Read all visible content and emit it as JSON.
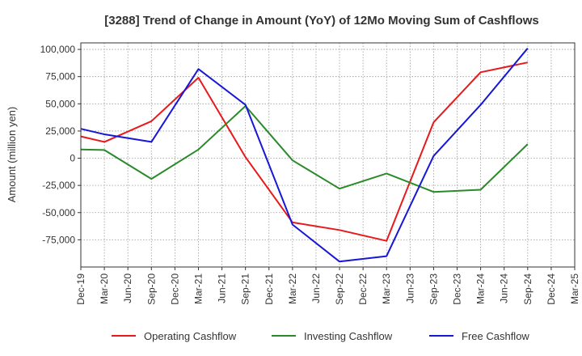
{
  "chart_data": {
    "type": "line",
    "title": "[3288]  Trend of Change in Amount (YoY) of 12Mo Moving Sum of Cashflows",
    "xlabel": "",
    "ylabel": "Amount (million yen)",
    "ylim": [
      -100000,
      106000
    ],
    "yticks": [
      100000,
      75000,
      50000,
      25000,
      0,
      -25000,
      -50000,
      -75000
    ],
    "ytick_labels": [
      "100,000",
      "75,000",
      "50,000",
      "25,000",
      "0",
      "-25,000",
      "-50,000",
      "-75,000"
    ],
    "categories": [
      "Dec-19",
      "Mar-20",
      "Jun-20",
      "Sep-20",
      "Dec-20",
      "Mar-21",
      "Jun-21",
      "Sep-21",
      "Dec-21",
      "Mar-22",
      "Jun-22",
      "Sep-22",
      "Dec-22",
      "Mar-23",
      "Jun-23",
      "Sep-23",
      "Dec-23",
      "Mar-24",
      "Jun-24",
      "Sep-24",
      "Dec-24",
      "Mar-25"
    ],
    "grid": true,
    "legend_position": "bottom",
    "series": [
      {
        "name": "Operating Cashflow",
        "color": "#e8191b",
        "values": [
          20000,
          15000,
          null,
          34000,
          null,
          74000,
          null,
          1000,
          null,
          -59000,
          null,
          -66000,
          null,
          -76000,
          null,
          33000,
          null,
          79000,
          null,
          88000,
          null,
          null
        ]
      },
      {
        "name": "Investing Cashflow",
        "color": "#2a8a2a",
        "values": [
          8000,
          7500,
          null,
          -19000,
          null,
          8000,
          null,
          48000,
          null,
          -2000,
          null,
          -28000,
          null,
          -14000,
          null,
          -31000,
          null,
          -29000,
          null,
          13000,
          null,
          null
        ]
      },
      {
        "name": "Free Cashflow",
        "color": "#1717d6",
        "values": [
          27000,
          22000,
          null,
          15000,
          null,
          82000,
          null,
          49000,
          null,
          -61000,
          null,
          -95000,
          null,
          -90000,
          null,
          2000,
          null,
          49000,
          null,
          101000,
          null,
          null
        ]
      }
    ]
  }
}
